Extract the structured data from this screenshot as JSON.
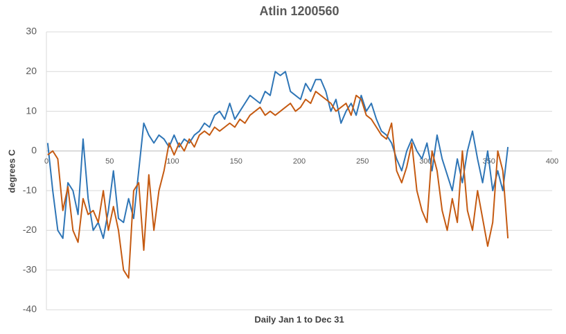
{
  "chart_data": {
    "type": "line",
    "title": "Atlin 1200560",
    "ylabel": "degrees C",
    "xlabel": "Daily Jan 1 to Dec 31",
    "x": [
      1,
      5,
      9,
      13,
      17,
      21,
      25,
      29,
      33,
      37,
      41,
      45,
      49,
      53,
      57,
      61,
      65,
      69,
      73,
      77,
      81,
      85,
      89,
      93,
      97,
      101,
      105,
      109,
      113,
      117,
      121,
      125,
      129,
      133,
      137,
      141,
      145,
      149,
      153,
      157,
      161,
      165,
      169,
      173,
      177,
      181,
      185,
      189,
      193,
      197,
      201,
      205,
      209,
      213,
      217,
      221,
      225,
      229,
      233,
      237,
      241,
      245,
      249,
      253,
      257,
      261,
      265,
      269,
      273,
      277,
      281,
      285,
      289,
      293,
      297,
      301,
      305,
      309,
      313,
      317,
      321,
      325,
      329,
      333,
      337,
      341,
      345,
      349,
      353,
      357,
      361,
      365
    ],
    "series": [
      {
        "color": "#2e75b6",
        "values": [
          2,
          -10,
          -20,
          -22,
          -8,
          -10,
          -16,
          3,
          -12,
          -20,
          -18,
          -22,
          -15,
          -5,
          -17,
          -18,
          -12,
          -17,
          -5,
          7,
          4,
          2,
          4,
          3,
          1,
          4,
          1,
          3,
          2,
          4,
          5,
          7,
          6,
          9,
          10,
          8,
          12,
          8,
          10,
          12,
          14,
          13,
          12,
          15,
          14,
          20,
          19,
          20,
          15,
          14,
          13,
          17,
          15,
          18,
          18,
          15,
          10,
          13,
          7,
          10,
          12,
          9,
          14,
          10,
          12,
          8,
          5,
          4,
          2,
          -2,
          -5,
          0,
          3,
          0,
          -2,
          2,
          -5,
          4,
          -2,
          -6,
          -10,
          -2,
          -8,
          0,
          5,
          -2,
          -8,
          0,
          -10,
          -5,
          -10,
          1
        ]
      },
      {
        "color": "#c55a11",
        "values": [
          -1,
          0,
          -2,
          -15,
          -9,
          -20,
          -23,
          -12,
          -16,
          -15,
          -18,
          -10,
          -20,
          -14,
          -20,
          -30,
          -32,
          -10,
          -8,
          -25,
          -6,
          -20,
          -10,
          -5,
          2,
          -1,
          2,
          0,
          3,
          1,
          4,
          5,
          4,
          6,
          5,
          6,
          7,
          6,
          8,
          7,
          9,
          10,
          11,
          9,
          10,
          9,
          10,
          11,
          12,
          10,
          11,
          13,
          12,
          15,
          14,
          13,
          12,
          10,
          11,
          12,
          9,
          14,
          13,
          9,
          8,
          6,
          4,
          3,
          7,
          -5,
          -8,
          -4,
          2,
          -10,
          -15,
          -18,
          0,
          -5,
          -15,
          -20,
          -12,
          -18,
          0,
          -15,
          -20,
          -10,
          -17,
          -24,
          -18,
          0,
          -5,
          -22
        ]
      }
    ],
    "xlim": [
      0,
      400
    ],
    "xticks": [
      0,
      50,
      100,
      150,
      200,
      250,
      300,
      350,
      400
    ],
    "ylim": [
      -40,
      30
    ],
    "yticks": [
      -40,
      -30,
      -20,
      -10,
      0,
      10,
      20,
      30
    ],
    "grid": true
  }
}
